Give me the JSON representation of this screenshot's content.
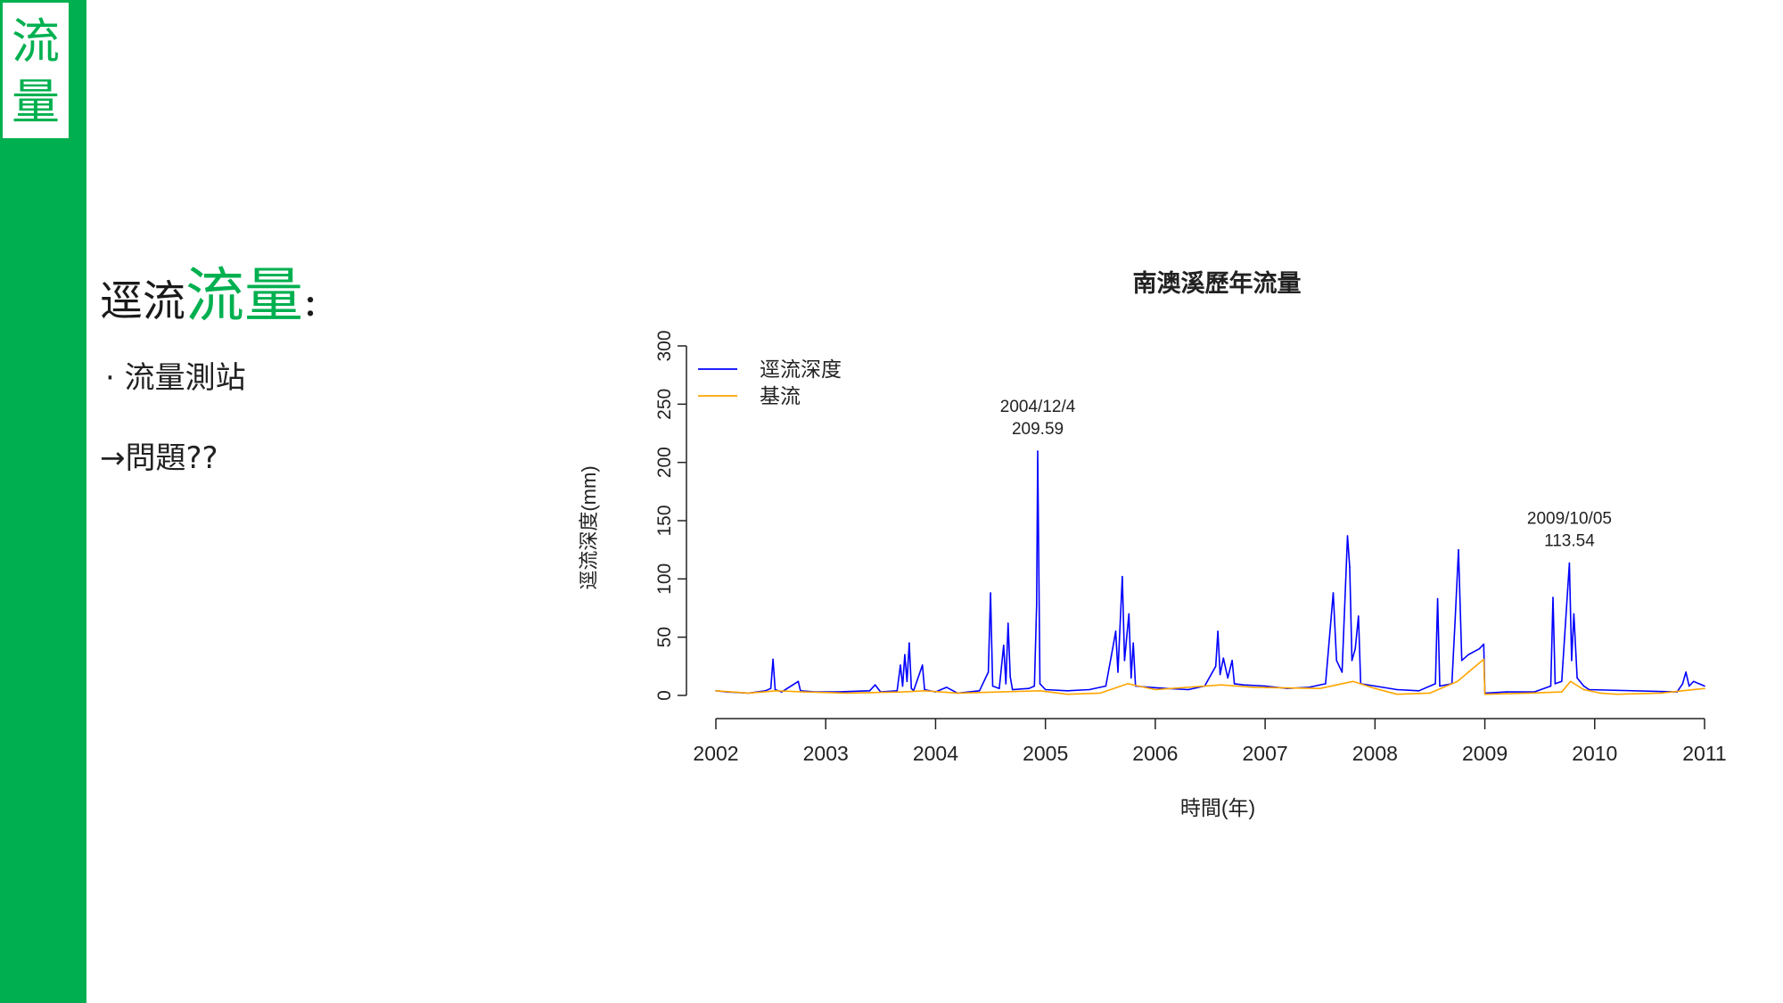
{
  "sidebar": {
    "char1": "流",
    "char2": "量",
    "color": "#00b050"
  },
  "slide": {
    "title_prefix": "逕流",
    "title_accent": "流量",
    "title_suffix": ":",
    "bullet1": "· 流量測站",
    "bullet2": "→問題??"
  },
  "chart_data": {
    "type": "line",
    "title": "南澳溪歷年流量",
    "xlabel": "時間(年)",
    "ylabel": "逕流深度(mm)",
    "xlim": [
      2002,
      2011
    ],
    "ylim": [
      0,
      300
    ],
    "x_ticks": [
      "2002",
      "2003",
      "2004",
      "2005",
      "2006",
      "2007",
      "2008",
      "2009",
      "2010",
      "2011"
    ],
    "y_ticks": [
      "0",
      "50",
      "100",
      "150",
      "200",
      "250",
      "300"
    ],
    "legend_position": "top-left",
    "series": [
      {
        "name": "逕流深度",
        "color": "#0000ff",
        "points": [
          [
            2002.0,
            4
          ],
          [
            2002.1,
            3
          ],
          [
            2002.3,
            2
          ],
          [
            2002.45,
            4
          ],
          [
            2002.5,
            6
          ],
          [
            2002.52,
            31
          ],
          [
            2002.54,
            5
          ],
          [
            2002.6,
            3
          ],
          [
            2002.75,
            12
          ],
          [
            2002.77,
            4
          ],
          [
            2002.9,
            3
          ],
          [
            2003.1,
            3
          ],
          [
            2003.4,
            4
          ],
          [
            2003.45,
            9
          ],
          [
            2003.5,
            3
          ],
          [
            2003.65,
            4
          ],
          [
            2003.68,
            26
          ],
          [
            2003.7,
            8
          ],
          [
            2003.72,
            35
          ],
          [
            2003.74,
            12
          ],
          [
            2003.76,
            45
          ],
          [
            2003.78,
            6
          ],
          [
            2003.8,
            4
          ],
          [
            2003.88,
            26
          ],
          [
            2003.9,
            5
          ],
          [
            2004.0,
            3
          ],
          [
            2004.1,
            7
          ],
          [
            2004.2,
            2
          ],
          [
            2004.4,
            4
          ],
          [
            2004.48,
            20
          ],
          [
            2004.5,
            88
          ],
          [
            2004.52,
            8
          ],
          [
            2004.58,
            6
          ],
          [
            2004.62,
            43
          ],
          [
            2004.64,
            10
          ],
          [
            2004.66,
            62
          ],
          [
            2004.68,
            16
          ],
          [
            2004.7,
            5
          ],
          [
            2004.85,
            6
          ],
          [
            2004.9,
            8
          ],
          [
            2004.92,
            78
          ],
          [
            2004.93,
            209.59
          ],
          [
            2004.95,
            10
          ],
          [
            2005.0,
            5
          ],
          [
            2005.2,
            4
          ],
          [
            2005.4,
            5
          ],
          [
            2005.55,
            8
          ],
          [
            2005.6,
            34
          ],
          [
            2005.64,
            55
          ],
          [
            2005.66,
            20
          ],
          [
            2005.7,
            102
          ],
          [
            2005.72,
            30
          ],
          [
            2005.76,
            70
          ],
          [
            2005.78,
            15
          ],
          [
            2005.8,
            45
          ],
          [
            2005.82,
            8
          ],
          [
            2005.95,
            7
          ],
          [
            2006.1,
            6
          ],
          [
            2006.3,
            5
          ],
          [
            2006.45,
            8
          ],
          [
            2006.55,
            25
          ],
          [
            2006.57,
            55
          ],
          [
            2006.59,
            18
          ],
          [
            2006.62,
            32
          ],
          [
            2006.66,
            15
          ],
          [
            2006.7,
            30
          ],
          [
            2006.72,
            10
          ],
          [
            2006.8,
            9
          ],
          [
            2007.0,
            8
          ],
          [
            2007.2,
            6
          ],
          [
            2007.4,
            7
          ],
          [
            2007.55,
            10
          ],
          [
            2007.62,
            88
          ],
          [
            2007.65,
            30
          ],
          [
            2007.7,
            20
          ],
          [
            2007.75,
            137
          ],
          [
            2007.77,
            110
          ],
          [
            2007.79,
            30
          ],
          [
            2007.82,
            40
          ],
          [
            2007.85,
            68
          ],
          [
            2007.87,
            10
          ],
          [
            2008.0,
            8
          ],
          [
            2008.2,
            5
          ],
          [
            2008.4,
            4
          ],
          [
            2008.55,
            10
          ],
          [
            2008.57,
            83
          ],
          [
            2008.59,
            8
          ],
          [
            2008.7,
            10
          ],
          [
            2008.73,
            66
          ],
          [
            2008.76,
            125
          ],
          [
            2008.79,
            30
          ],
          [
            2008.85,
            35
          ],
          [
            2008.95,
            40
          ],
          [
            2008.99,
            44
          ],
          [
            2009.0,
            2
          ],
          [
            2009.2,
            3
          ],
          [
            2009.45,
            3
          ],
          [
            2009.6,
            8
          ],
          [
            2009.62,
            84
          ],
          [
            2009.64,
            10
          ],
          [
            2009.7,
            12
          ],
          [
            2009.77,
            113.54
          ],
          [
            2009.79,
            30
          ],
          [
            2009.81,
            70
          ],
          [
            2009.84,
            15
          ],
          [
            2009.9,
            8
          ],
          [
            2009.95,
            5
          ],
          [
            2010.75,
            3
          ],
          [
            2010.8,
            10
          ],
          [
            2010.83,
            20
          ],
          [
            2010.86,
            8
          ],
          [
            2010.9,
            12
          ],
          [
            2011.0,
            8
          ]
        ]
      },
      {
        "name": "基流",
        "color": "#ffa500",
        "points": [
          [
            2002.0,
            4
          ],
          [
            2002.3,
            2
          ],
          [
            2002.55,
            4
          ],
          [
            2002.8,
            3
          ],
          [
            2003.2,
            2
          ],
          [
            2003.7,
            3
          ],
          [
            2003.9,
            4
          ],
          [
            2004.2,
            2
          ],
          [
            2004.6,
            3
          ],
          [
            2004.95,
            4
          ],
          [
            2005.2,
            1
          ],
          [
            2005.5,
            2
          ],
          [
            2005.75,
            10
          ],
          [
            2006.0,
            5
          ],
          [
            2006.6,
            9
          ],
          [
            2006.9,
            7
          ],
          [
            2007.5,
            6
          ],
          [
            2007.8,
            12
          ],
          [
            2008.0,
            6
          ],
          [
            2008.2,
            1
          ],
          [
            2008.5,
            2
          ],
          [
            2008.75,
            12
          ],
          [
            2008.99,
            31
          ],
          [
            2009.0,
            1
          ],
          [
            2009.4,
            2
          ],
          [
            2009.7,
            3
          ],
          [
            2009.78,
            12
          ],
          [
            2009.9,
            5
          ],
          [
            2010.05,
            2
          ],
          [
            2010.2,
            1
          ],
          [
            2010.6,
            2
          ],
          [
            2011.0,
            6
          ]
        ]
      }
    ],
    "annotations": [
      {
        "date": "2004/12/4",
        "value": "209.59",
        "x": 2004.93,
        "y": 209.59
      },
      {
        "date": "2009/10/05",
        "value": "113.54",
        "x": 2009.77,
        "y": 113.54
      }
    ]
  }
}
